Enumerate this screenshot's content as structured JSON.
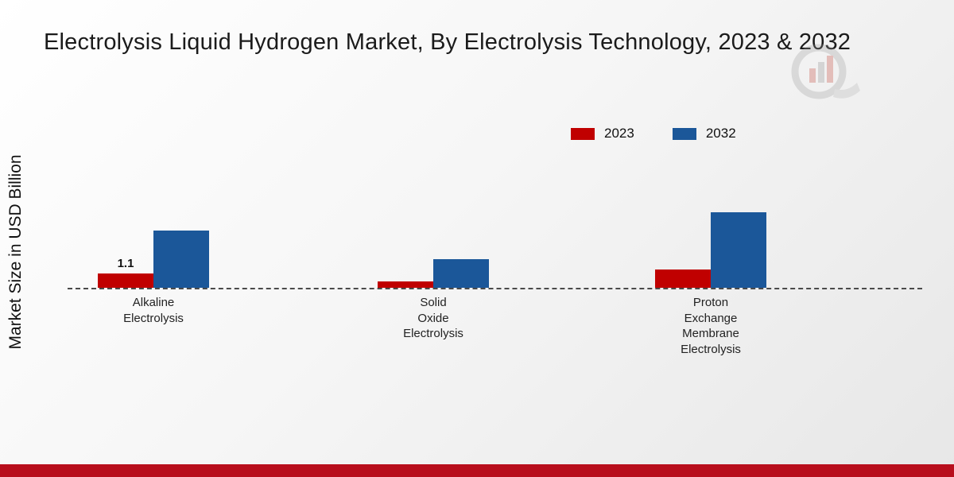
{
  "title": "Electrolysis Liquid Hydrogen Market, By Electrolysis Technology, 2023 & 2032",
  "y_axis_label": "Market Size in USD Billion",
  "legend": [
    {
      "label": "2023",
      "color": "#c00000"
    },
    {
      "label": "2032",
      "color": "#1b5799"
    }
  ],
  "footer_bar_color": "#b80e1c",
  "chart_data": {
    "type": "bar",
    "title": "Electrolysis Liquid Hydrogen Market, By Electrolysis Technology, 2023 & 2032",
    "xlabel": "",
    "ylabel": "Market Size in USD Billion",
    "ylim": [
      0,
      7
    ],
    "grid": false,
    "legend_position": "top-right",
    "baseline_style": "dashed",
    "categories": [
      {
        "label": "Alkaline Electrolysis",
        "lines": [
          "Alkaline",
          "Electrolysis"
        ]
      },
      {
        "label": "Solid Oxide Electrolysis",
        "lines": [
          "Solid",
          "Oxide",
          "Electrolysis"
        ]
      },
      {
        "label": "Proton Exchange Membrane Electrolysis",
        "lines": [
          "Proton",
          "Exchange",
          "Membrane",
          "Electrolysis"
        ]
      }
    ],
    "series": [
      {
        "name": "2023",
        "color": "#c00000",
        "values": [
          1.1,
          0.5,
          1.4
        ]
      },
      {
        "name": "2032",
        "color": "#1b5799",
        "values": [
          4.4,
          2.2,
          5.8
        ]
      }
    ],
    "annotations": [
      {
        "series": "2023",
        "category_index": 0,
        "text": "1.1"
      }
    ]
  }
}
